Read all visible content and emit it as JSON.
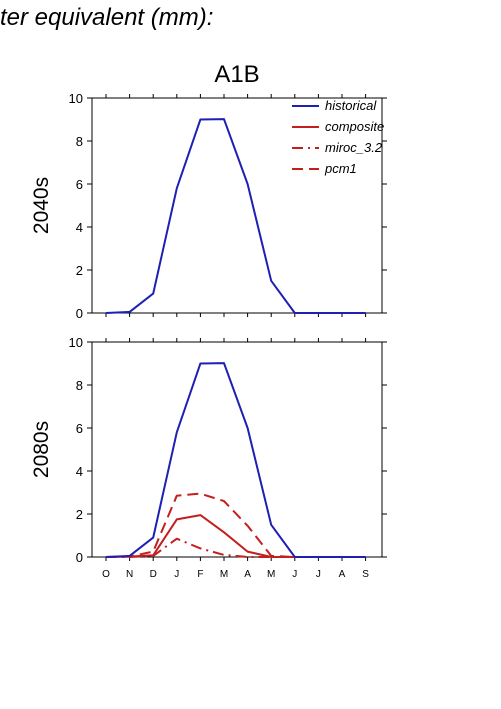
{
  "header": {
    "title": "ter equivalent (mm):"
  },
  "chart_data": {
    "type": "line",
    "title": "A1B",
    "categories": [
      "O",
      "N",
      "D",
      "J",
      "F",
      "M",
      "A",
      "M",
      "J",
      "J",
      "A",
      "S"
    ],
    "ylim": [
      0,
      10
    ],
    "yticks": [
      "0",
      "2",
      "4",
      "6",
      "8",
      "10"
    ],
    "legend": {
      "placement": "top-right",
      "entries": [
        {
          "name": "historical",
          "color": "#1f1fb4",
          "style": "solid"
        },
        {
          "name": "composite",
          "color": "#c41e1e",
          "style": "solid"
        },
        {
          "name": "miroc_3.2",
          "color": "#c41e1e",
          "style": "dashdot"
        },
        {
          "name": "pcm1",
          "color": "#c41e1e",
          "style": "dashed"
        }
      ]
    },
    "panels": [
      {
        "label": "2040s",
        "series": [
          {
            "name": "historical",
            "color": "#1f1fb4",
            "style": "solid",
            "values": [
              0,
              0.05,
              0.9,
              5.8,
              9.0,
              9.02,
              6.0,
              1.5,
              0,
              0,
              0,
              0
            ]
          }
        ]
      },
      {
        "label": "2080s",
        "series": [
          {
            "name": "historical",
            "color": "#1f1fb4",
            "style": "solid",
            "values": [
              0,
              0.05,
              0.9,
              5.8,
              9.0,
              9.02,
              6.0,
              1.5,
              0,
              0,
              0,
              0
            ]
          },
          {
            "name": "composite",
            "color": "#c41e1e",
            "style": "solid",
            "values": [
              0,
              0.02,
              0.08,
              1.75,
              1.95,
              1.15,
              0.25,
              0,
              0,
              0,
              0,
              0
            ]
          },
          {
            "name": "miroc_3.2",
            "color": "#c41e1e",
            "style": "dashdot",
            "values": [
              0,
              0,
              0.05,
              0.85,
              0.4,
              0.1,
              0,
              0,
              0,
              0,
              0,
              0
            ]
          },
          {
            "name": "pcm1",
            "color": "#c41e1e",
            "style": "dashed",
            "values": [
              0,
              0.02,
              0.25,
              2.85,
              2.95,
              2.6,
              1.45,
              0.05,
              0,
              0,
              0,
              0
            ]
          }
        ]
      }
    ]
  }
}
